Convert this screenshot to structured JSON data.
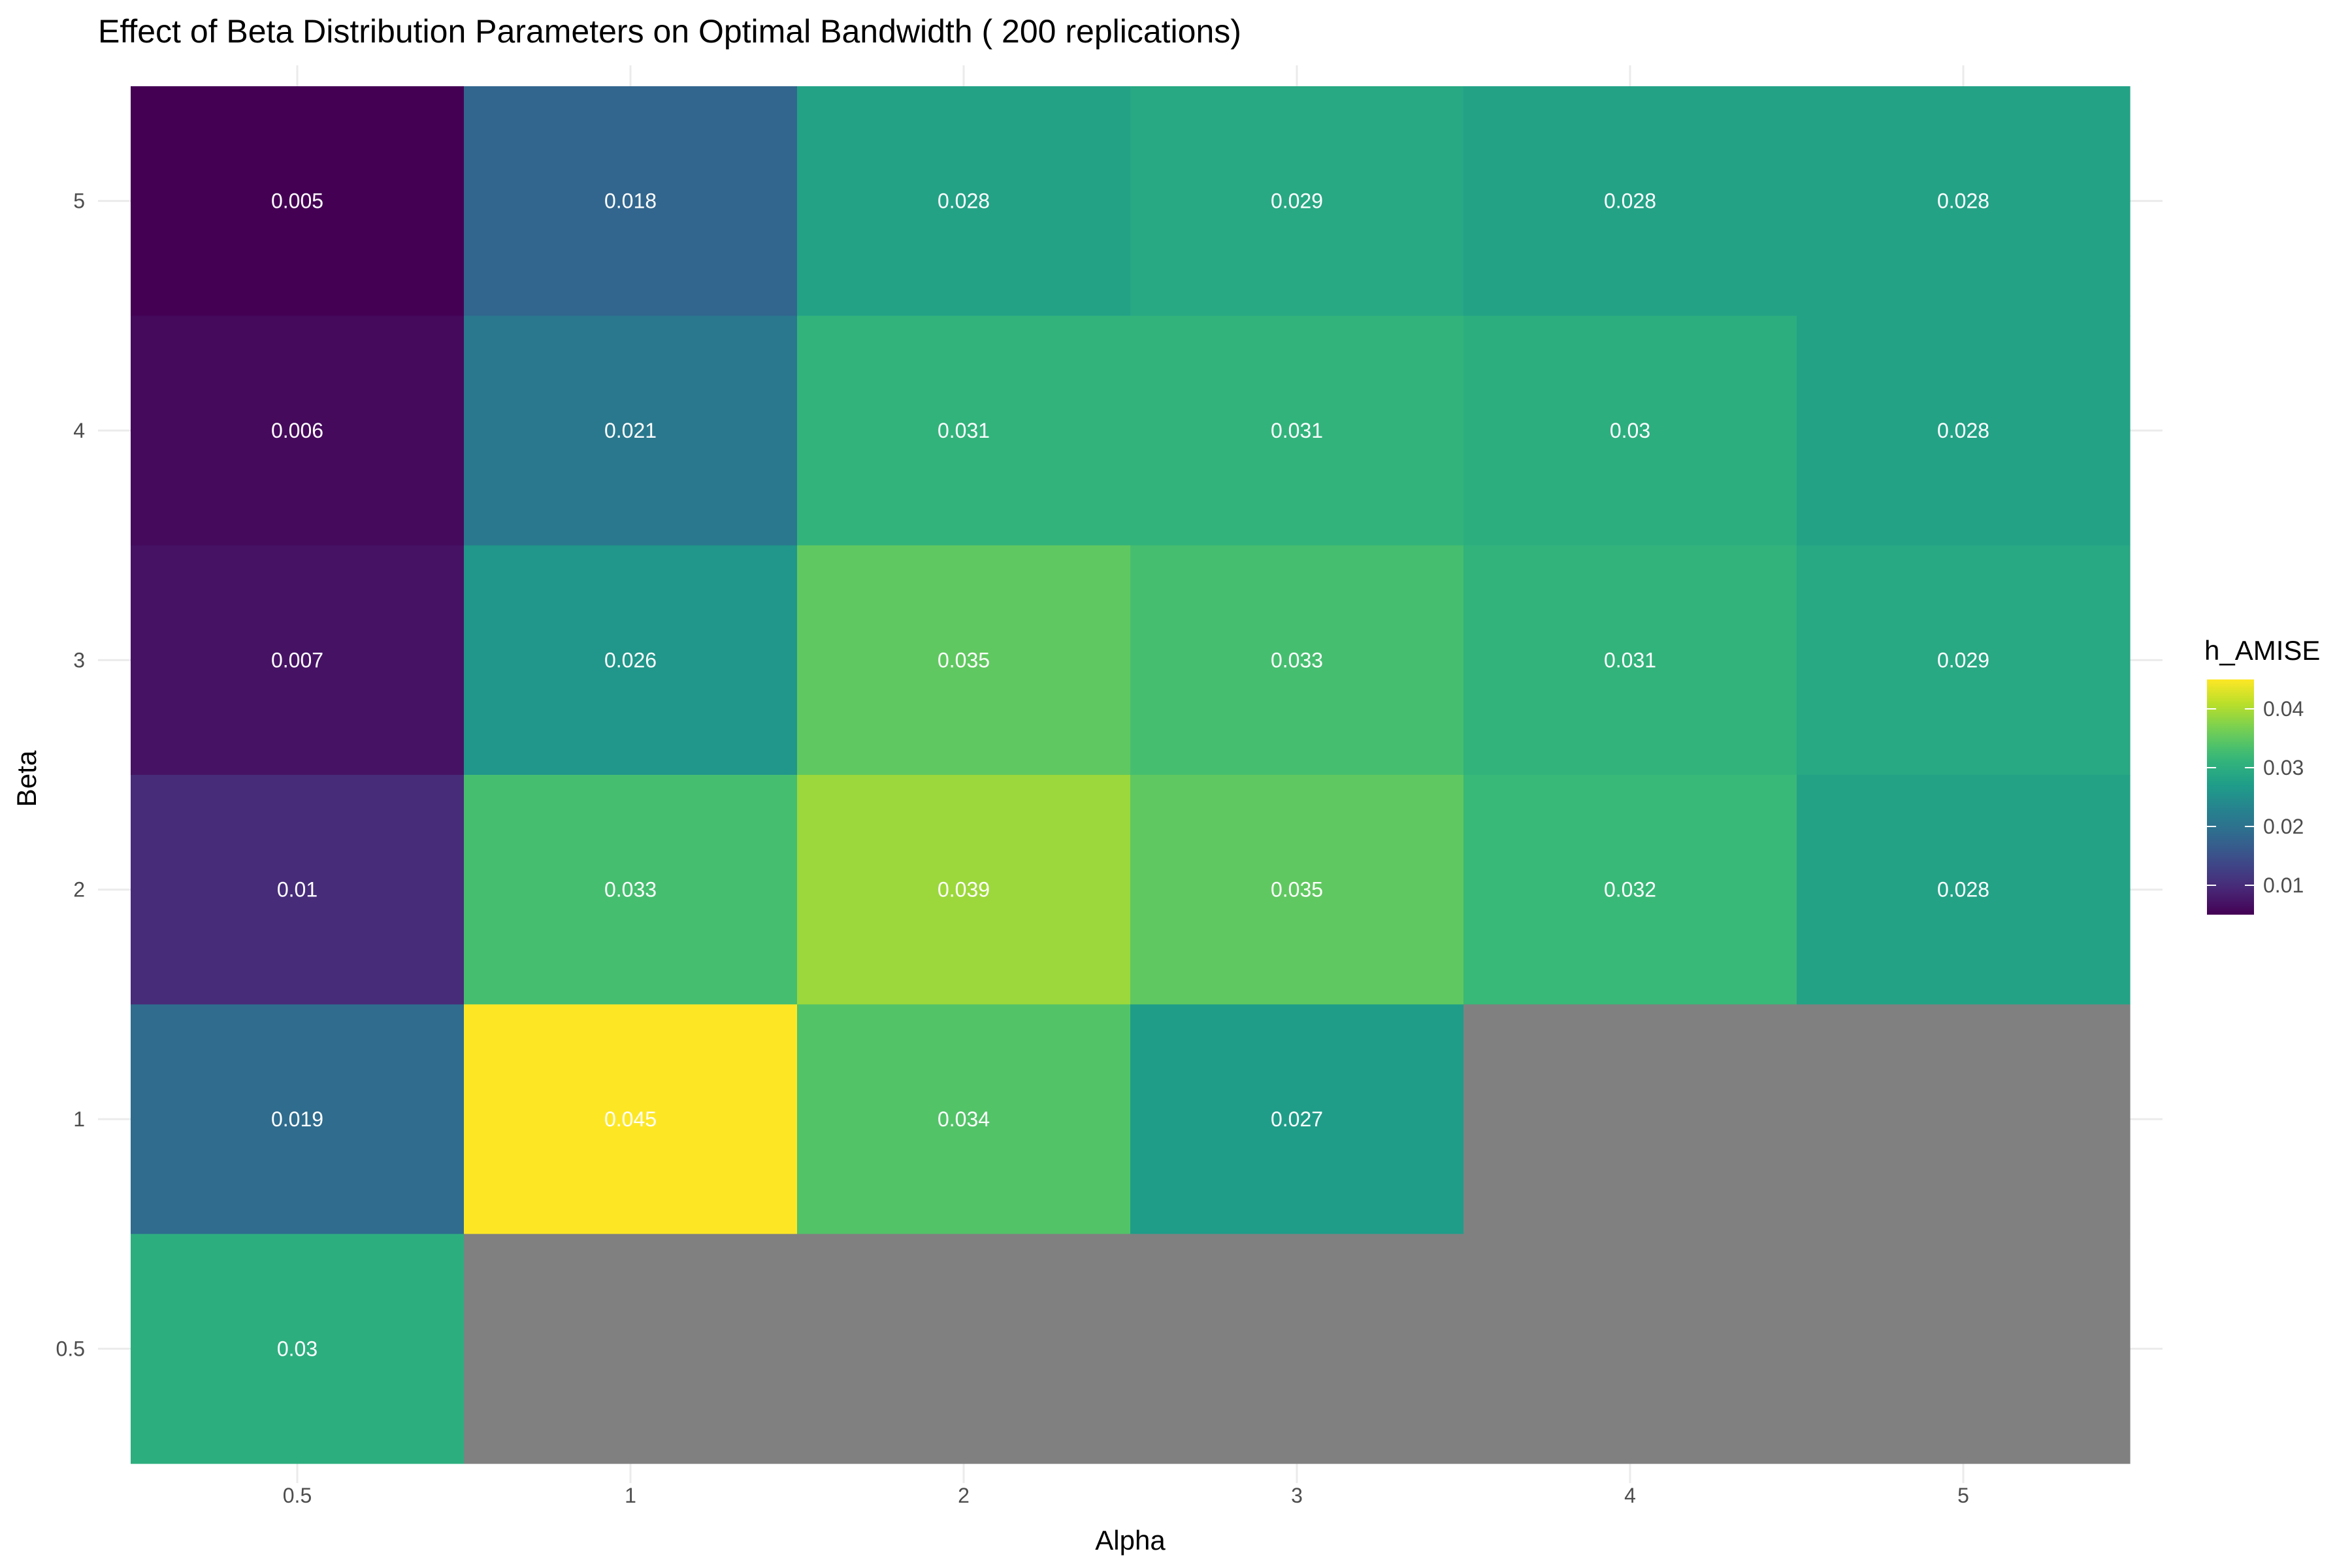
{
  "chart_data": {
    "type": "heatmap",
    "title": "Effect of Beta Distribution Parameters on Optimal Bandwidth ( 200 replications)",
    "xlabel": "Alpha",
    "ylabel": "Beta",
    "x_categories": [
      "0.5",
      "1",
      "2",
      "3",
      "4",
      "5"
    ],
    "y_categories": [
      "0.5",
      "1",
      "2",
      "3",
      "4",
      "5"
    ],
    "cells": [
      {
        "alpha": "0.5",
        "beta": "5",
        "value": 0.005,
        "label": "0.005"
      },
      {
        "alpha": "1",
        "beta": "5",
        "value": 0.018,
        "label": "0.018"
      },
      {
        "alpha": "2",
        "beta": "5",
        "value": 0.028,
        "label": "0.028"
      },
      {
        "alpha": "3",
        "beta": "5",
        "value": 0.029,
        "label": "0.029"
      },
      {
        "alpha": "4",
        "beta": "5",
        "value": 0.028,
        "label": "0.028"
      },
      {
        "alpha": "5",
        "beta": "5",
        "value": 0.028,
        "label": "0.028"
      },
      {
        "alpha": "0.5",
        "beta": "4",
        "value": 0.006,
        "label": "0.006"
      },
      {
        "alpha": "1",
        "beta": "4",
        "value": 0.021,
        "label": "0.021"
      },
      {
        "alpha": "2",
        "beta": "4",
        "value": 0.031,
        "label": "0.031"
      },
      {
        "alpha": "3",
        "beta": "4",
        "value": 0.031,
        "label": "0.031"
      },
      {
        "alpha": "4",
        "beta": "4",
        "value": 0.03,
        "label": "0.03"
      },
      {
        "alpha": "5",
        "beta": "4",
        "value": 0.028,
        "label": "0.028"
      },
      {
        "alpha": "0.5",
        "beta": "3",
        "value": 0.007,
        "label": "0.007"
      },
      {
        "alpha": "1",
        "beta": "3",
        "value": 0.026,
        "label": "0.026"
      },
      {
        "alpha": "2",
        "beta": "3",
        "value": 0.035,
        "label": "0.035"
      },
      {
        "alpha": "3",
        "beta": "3",
        "value": 0.033,
        "label": "0.033"
      },
      {
        "alpha": "4",
        "beta": "3",
        "value": 0.031,
        "label": "0.031"
      },
      {
        "alpha": "5",
        "beta": "3",
        "value": 0.029,
        "label": "0.029"
      },
      {
        "alpha": "0.5",
        "beta": "2",
        "value": 0.01,
        "label": "0.01"
      },
      {
        "alpha": "1",
        "beta": "2",
        "value": 0.033,
        "label": "0.033"
      },
      {
        "alpha": "2",
        "beta": "2",
        "value": 0.039,
        "label": "0.039"
      },
      {
        "alpha": "3",
        "beta": "2",
        "value": 0.035,
        "label": "0.035"
      },
      {
        "alpha": "4",
        "beta": "2",
        "value": 0.032,
        "label": "0.032"
      },
      {
        "alpha": "5",
        "beta": "2",
        "value": 0.028,
        "label": "0.028"
      },
      {
        "alpha": "0.5",
        "beta": "1",
        "value": 0.019,
        "label": "0.019"
      },
      {
        "alpha": "1",
        "beta": "1",
        "value": 0.045,
        "label": "0.045"
      },
      {
        "alpha": "2",
        "beta": "1",
        "value": 0.034,
        "label": "0.034"
      },
      {
        "alpha": "3",
        "beta": "1",
        "value": 0.027,
        "label": "0.027"
      },
      {
        "alpha": "4",
        "beta": "1",
        "value": null,
        "label": ""
      },
      {
        "alpha": "5",
        "beta": "1",
        "value": null,
        "label": ""
      },
      {
        "alpha": "0.5",
        "beta": "0.5",
        "value": 0.03,
        "label": "0.03"
      },
      {
        "alpha": "1",
        "beta": "0.5",
        "value": null,
        "label": ""
      },
      {
        "alpha": "2",
        "beta": "0.5",
        "value": null,
        "label": ""
      },
      {
        "alpha": "3",
        "beta": "0.5",
        "value": null,
        "label": ""
      },
      {
        "alpha": "4",
        "beta": "0.5",
        "value": null,
        "label": ""
      },
      {
        "alpha": "5",
        "beta": "0.5",
        "value": null,
        "label": ""
      }
    ],
    "color_scale": {
      "name": "viridis",
      "min": 0.005,
      "max": 0.045,
      "na_color": "#808080",
      "stops": [
        "#440154",
        "#482878",
        "#3e4989",
        "#31688e",
        "#26828e",
        "#1f9e89",
        "#35b779",
        "#6ece58",
        "#b5de2b",
        "#fde725"
      ]
    },
    "legend": {
      "title": "h_AMISE",
      "position": "right",
      "ticks": [
        {
          "value": 0.01,
          "label": "0.01"
        },
        {
          "value": 0.02,
          "label": "0.02"
        },
        {
          "value": 0.03,
          "label": "0.03"
        },
        {
          "value": 0.04,
          "label": "0.04"
        }
      ]
    },
    "grid": true
  }
}
